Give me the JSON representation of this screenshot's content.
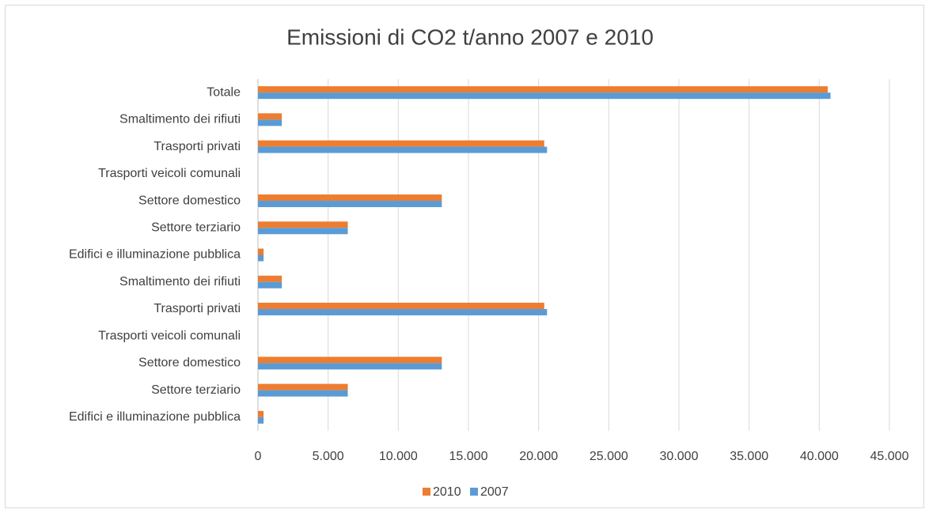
{
  "chart_data": {
    "type": "hbar",
    "title": "Emissioni di CO2 t/anno 2007 e 2010",
    "categories": [
      "Totale",
      "Smaltimento dei rifiuti",
      "Trasporti privati",
      "Trasporti veicoli comunali",
      "Settore domestico",
      "Settore terziario",
      "Edifici e illuminazione pubblica",
      "Smaltimento dei rifiuti",
      "Trasporti privati",
      "Trasporti veicoli comunali",
      "Settore domestico",
      "Settore terziario",
      "Edifici e illuminazione pubblica"
    ],
    "series": [
      {
        "name": "2010",
        "color": "#ed7d31",
        "values": [
          40600,
          1700,
          20400,
          0,
          13100,
          6400,
          400,
          1700,
          20400,
          0,
          13100,
          6400,
          400
        ]
      },
      {
        "name": "2007",
        "color": "#5b9bd5",
        "values": [
          40800,
          1700,
          20600,
          0,
          13100,
          6400,
          400,
          1700,
          20600,
          0,
          13100,
          6400,
          400
        ]
      }
    ],
    "xlim": [
      0,
      45000
    ],
    "xticks": [
      0,
      {
        "value": 5000,
        "label": "5.000"
      },
      {
        "value": 10000,
        "label": "10.000"
      },
      {
        "value": 15000,
        "label": "15.000"
      },
      {
        "value": 20000,
        "label": "20.000"
      },
      {
        "value": 25000,
        "label": "25.000"
      },
      {
        "value": 30000,
        "label": "30.000"
      },
      {
        "value": 35000,
        "label": "35.000"
      },
      {
        "value": 40000,
        "label": "40.000"
      },
      {
        "value": 45000,
        "label": "45.000"
      }
    ],
    "grid": true,
    "legend": "bottom"
  }
}
